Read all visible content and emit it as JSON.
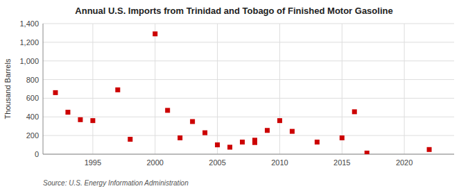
{
  "chart_data": {
    "type": "scatter",
    "title": "Annual U.S. Imports from Trinidad and Tobago of Finished Motor Gasoline",
    "y_label": "Thousand Barrels",
    "annotations": [
      "Source: U.S. Energy Information Administration"
    ],
    "x": [
      1992,
      1993,
      1994,
      1995,
      1997,
      1998,
      2000,
      2001,
      2002,
      2003,
      2004,
      2005,
      2006,
      2007,
      2008,
      2008,
      2009,
      2010,
      2011,
      2013,
      2015,
      2016,
      2017,
      2022
    ],
    "values": [
      660,
      450,
      370,
      360,
      690,
      160,
      1290,
      470,
      175,
      350,
      230,
      100,
      75,
      130,
      150,
      125,
      255,
      360,
      245,
      130,
      175,
      455,
      12,
      50
    ],
    "color": "#cc0000",
    "marker": "square",
    "grid": true,
    "xlim": [
      1991,
      2024
    ],
    "xticks": [
      1995,
      2000,
      2005,
      2010,
      2015,
      2020
    ],
    "ylim": [
      0,
      1400
    ],
    "yticks": [
      0,
      200,
      400,
      600,
      800,
      {
        "value": 1000,
        "label": "1,000"
      },
      {
        "value": 1200,
        "label": "1,200"
      },
      {
        "value": 1400,
        "label": "1,400"
      }
    ]
  }
}
